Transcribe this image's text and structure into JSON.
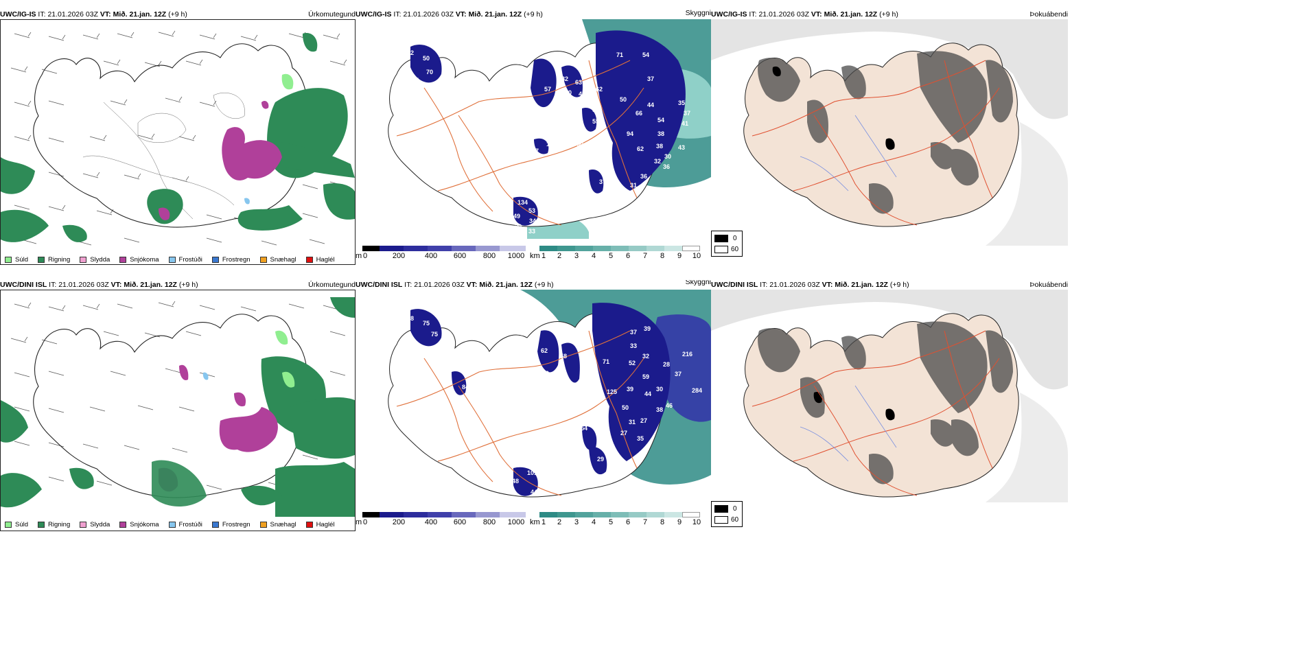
{
  "colors": {
    "rain_green": "#2e8b57",
    "drizzle_green": "#90ee90",
    "sleet_pink": "#f0a0d0",
    "snow_magenta": "#b0409a",
    "frost_drizzle": "#87c6ee",
    "freezing_rain": "#3a78d0",
    "snow_pellets": "#f0a020",
    "hail": "#e01010",
    "cloud_navy": "#1b1b8c",
    "vis_teal": "#2e8b85",
    "roads_orange": "#e0703a",
    "land_tan": "#f3e3d6"
  },
  "rows": [
    {
      "model": "UWC/IG-IS",
      "it_label": "IT:",
      "it_value": "21.01.2026 03Z",
      "vt_label": "VT:",
      "vt_value": "Mið. 21.jan. 12Z",
      "lead": "(+9 h)",
      "panels": [
        {
          "title": "Úrkomutegund"
        },
        {
          "title": "Skyggni"
        },
        {
          "title": "Þokuábendi"
        }
      ],
      "cloud_numbers": [
        "66",
        "72",
        "50",
        "70",
        "77",
        "71",
        "54",
        "57",
        "82",
        "63",
        "60",
        "42",
        "162",
        "37",
        "88",
        "67",
        "55",
        "50",
        "44",
        "66",
        "35",
        "37",
        "41",
        "54",
        "55",
        "94",
        "38",
        "50",
        "62",
        "38",
        "119",
        "70",
        "32",
        "30",
        "87",
        "10",
        "36",
        "43",
        "37",
        "36",
        "31",
        "19",
        "32",
        "134",
        "53",
        "49",
        "34",
        "20",
        "86",
        "33"
      ]
    },
    {
      "model": "UWC/DINI ISL",
      "it_label": "IT:",
      "it_value": "21.01.2026 03Z",
      "vt_label": "VT:",
      "vt_value": "Mið. 21.jan. 12Z",
      "lead": "(+9 h)",
      "panels": [
        {
          "title": "Úrkomutegund"
        },
        {
          "title": "Skyggni"
        },
        {
          "title": "Þokuábendi"
        }
      ],
      "cloud_numbers": [
        "55",
        "78",
        "75",
        "75",
        "95",
        "117",
        "62",
        "58",
        "50",
        "57",
        "91",
        "54",
        "56",
        "71",
        "33",
        "37",
        "52",
        "39",
        "32",
        "28",
        "216",
        "37",
        "59",
        "284",
        "44",
        "30",
        "38",
        "46",
        "60",
        "63",
        "125",
        "50",
        "959",
        "31",
        "27",
        "27",
        "35",
        "30",
        "29",
        "67",
        "84",
        "72",
        "101",
        "48",
        "44",
        "54",
        "39"
      ]
    }
  ],
  "precip_legend": [
    "Súld",
    "Rigning",
    "Slydda",
    "Snjókoma",
    "Frostúði",
    "Frostregn",
    "Snæhagl",
    "Haglél"
  ],
  "cloud_colorbar": {
    "unit": "m",
    "ticks": [
      "0",
      "200",
      "400",
      "600",
      "800",
      "1000"
    ]
  },
  "vis_colorbar": {
    "unit": "km",
    "ticks": [
      "1",
      "2",
      "3",
      "4",
      "5",
      "6",
      "7",
      "8",
      "9",
      "10"
    ]
  },
  "fog_legend": {
    "high": "0",
    "low": "60"
  }
}
